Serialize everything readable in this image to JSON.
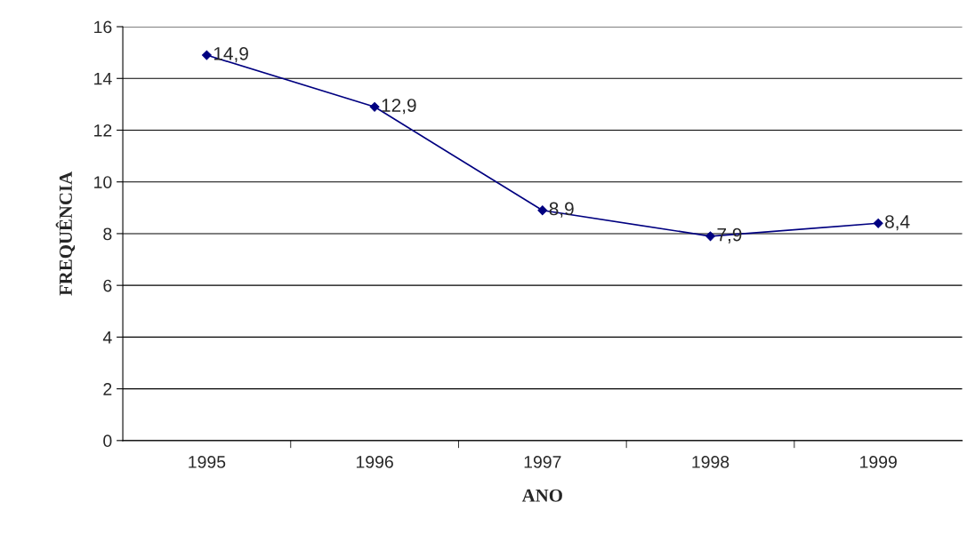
{
  "chart_data": {
    "type": "line",
    "xlabel": "ANO",
    "ylabel": "FREQUÊNCIA",
    "categories": [
      "1995",
      "1996",
      "1997",
      "1998",
      "1999"
    ],
    "series": [
      {
        "color": "#000080",
        "values": [
          14.9,
          12.9,
          8.9,
          7.9,
          8.4
        ],
        "value_labels": [
          "14,9",
          "12,9",
          "8,9",
          "7,9",
          "8,4"
        ]
      }
    ],
    "ylim": [
      0,
      16
    ],
    "yticks": [
      0,
      2,
      4,
      6,
      8,
      10,
      12,
      14,
      16
    ],
    "grid": "y",
    "marker": "diamond",
    "line_style": "solid",
    "legend": false
  }
}
